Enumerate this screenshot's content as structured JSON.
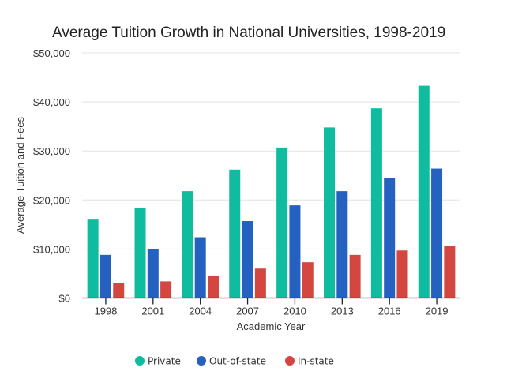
{
  "chart_data": {
    "type": "bar",
    "title": "Average Tuition Growth in National Universities, 1998-2019",
    "xlabel": "Academic Year",
    "ylabel": "Average Tuition and Fees",
    "ylim": [
      0,
      50000
    ],
    "yticks": [
      0,
      10000,
      20000,
      30000,
      40000,
      50000
    ],
    "ytick_labels": [
      "$0",
      "$10,000",
      "$20,000",
      "$30,000",
      "$40,000",
      "$50,000"
    ],
    "grid": true,
    "legend_position": "bottom",
    "categories": [
      "1998",
      "2001",
      "2004",
      "2007",
      "2010",
      "2013",
      "2016",
      "2019"
    ],
    "series": [
      {
        "name": "Private",
        "color": "#10bca0",
        "values": [
          16000,
          18400,
          21800,
          26200,
          30700,
          34800,
          38700,
          43300
        ]
      },
      {
        "name": "Out-of-state",
        "color": "#2461c0",
        "values": [
          8800,
          10000,
          12400,
          15700,
          18900,
          21800,
          24400,
          26400
        ]
      },
      {
        "name": "In-state",
        "color": "#d44640",
        "values": [
          3100,
          3400,
          4600,
          6000,
          7300,
          8800,
          9700,
          10700
        ]
      }
    ]
  }
}
